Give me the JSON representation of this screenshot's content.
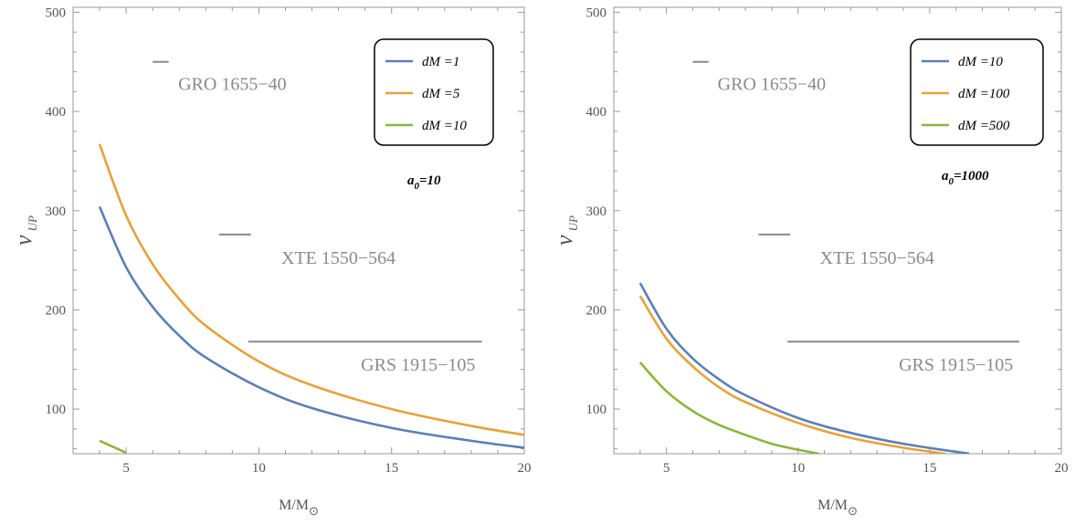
{
  "chart_data": [
    {
      "type": "line",
      "xlabel": "M/M",
      "xlabel_sub": "⊙",
      "ylabel": "ν",
      "ylabel_sub": "UP",
      "xlim": [
        3,
        20
      ],
      "ylim": [
        55,
        505
      ],
      "xticks": [
        5,
        10,
        15,
        20
      ],
      "yticks": [
        100,
        200,
        300,
        400,
        500
      ],
      "parameter_label": "a",
      "parameter_sub": "0",
      "parameter_value": "=10",
      "legend_placement": "top-right",
      "series": [
        {
          "name": "dM =1",
          "color": "#5b7fb8",
          "x": [
            4,
            5,
            6,
            7,
            8,
            10,
            12,
            15,
            18,
            20
          ],
          "y": [
            304,
            243,
            203,
            174,
            152,
            122,
            101,
            81,
            68,
            61
          ]
        },
        {
          "name": "dM =5",
          "color": "#e6a23a",
          "x": [
            4,
            5,
            6,
            7,
            8,
            10,
            12,
            15,
            18,
            20
          ],
          "y": [
            367,
            295,
            246,
            211,
            184,
            148,
            124,
            100,
            83,
            74
          ]
        },
        {
          "name": "dM =10",
          "color": "#8db53c",
          "x": [
            4,
            5
          ],
          "y": [
            68,
            56
          ]
        }
      ],
      "annotations": [
        {
          "label": "GRO 1655−40",
          "x_range": [
            6.0,
            6.6
          ],
          "y": 450,
          "label_x": 9.0,
          "label_y": 428
        },
        {
          "label": "XTE 1550−564",
          "x_range": [
            8.5,
            9.7
          ],
          "y": 276,
          "label_x": 13.0,
          "label_y": 253
        },
        {
          "label": "GRS 1915−105",
          "x_range": [
            9.6,
            18.4
          ],
          "y": 168,
          "label_x": 16.0,
          "label_y": 145
        }
      ]
    },
    {
      "type": "line",
      "xlabel": "M/M",
      "xlabel_sub": "⊙",
      "ylabel": "ν",
      "ylabel_sub": "UP",
      "xlim": [
        3,
        20
      ],
      "ylim": [
        55,
        505
      ],
      "xticks": [
        5,
        10,
        15,
        20
      ],
      "yticks": [
        100,
        200,
        300,
        400,
        500
      ],
      "parameter_label": "a",
      "parameter_sub": "0",
      "parameter_value": "=1000",
      "legend_placement": "top-right",
      "series": [
        {
          "name": "dM =10",
          "color": "#5b7fb8",
          "x": [
            4,
            5,
            6,
            7,
            8,
            10,
            12,
            14,
            16.5
          ],
          "y": [
            227,
            181,
            151,
            130,
            114,
            91,
            76,
            65,
            55
          ]
        },
        {
          "name": "dM =100",
          "color": "#e6a23a",
          "x": [
            4,
            5,
            6,
            7,
            8,
            10,
            12,
            14,
            15.6
          ],
          "y": [
            214,
            171,
            143,
            122,
            107,
            86,
            71,
            61,
            55
          ]
        },
        {
          "name": "dM =500",
          "color": "#8db53c",
          "x": [
            4,
            5,
            6,
            7,
            8,
            9,
            10,
            10.8
          ],
          "y": [
            147,
            118,
            98,
            84,
            74,
            65,
            59,
            55
          ]
        }
      ],
      "annotations": [
        {
          "label": "GRO 1655−40",
          "x_range": [
            6.0,
            6.6
          ],
          "y": 450,
          "label_x": 9.0,
          "label_y": 428
        },
        {
          "label": "XTE 1550−564",
          "x_range": [
            8.5,
            9.7
          ],
          "y": 276,
          "label_x": 13.0,
          "label_y": 253
        },
        {
          "label": "GRS 1915−105",
          "x_range": [
            9.6,
            18.4
          ],
          "y": 168,
          "label_x": 16.0,
          "label_y": 145
        }
      ]
    }
  ]
}
